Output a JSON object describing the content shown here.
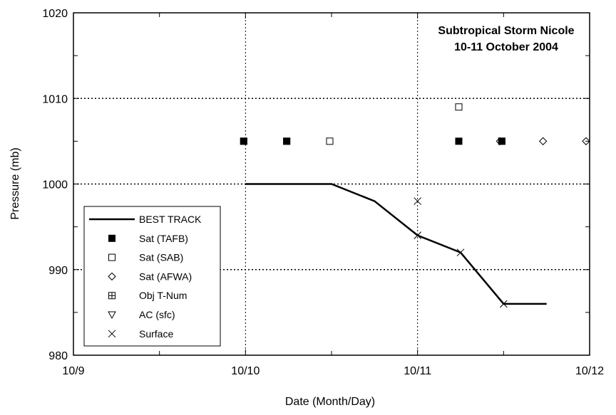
{
  "chart_data": {
    "type": "scatter",
    "title": "Subtropical Storm Nicole",
    "subtitle": "10-11 October 2004",
    "xlabel": "Date (Month/Day)",
    "ylabel": "Pressure (mb)",
    "x_ticks": [
      "10/9",
      "10/10",
      "10/11",
      "10/12"
    ],
    "x_range": [
      "10/9 00Z",
      "10/12 00Z"
    ],
    "y_ticks": [
      980,
      990,
      1000,
      1010,
      1020
    ],
    "ylim": [
      980,
      1020
    ],
    "grid": true,
    "legend_position": "bottom-left",
    "series": [
      {
        "name": "BEST TRACK",
        "style": "line",
        "points": [
          {
            "x": "10/10 00Z",
            "y": 1000
          },
          {
            "x": "10/10 06Z",
            "y": 1000
          },
          {
            "x": "10/10 12Z",
            "y": 1000
          },
          {
            "x": "10/10 18Z",
            "y": 998
          },
          {
            "x": "10/11 00Z",
            "y": 994
          },
          {
            "x": "10/11 06Z",
            "y": 992
          },
          {
            "x": "10/11 12Z",
            "y": 986
          },
          {
            "x": "10/11 18Z",
            "y": 986
          }
        ]
      },
      {
        "name": "Sat (TAFB)",
        "style": "filled-square",
        "points": [
          {
            "x": "10/09 23:45Z",
            "y": 1005
          },
          {
            "x": "10/10 05:45Z",
            "y": 1005
          },
          {
            "x": "10/11 05:45Z",
            "y": 1005
          },
          {
            "x": "10/11 11:45Z",
            "y": 1005
          }
        ]
      },
      {
        "name": "Sat (SAB)",
        "style": "open-square",
        "points": [
          {
            "x": "10/09 23:45Z",
            "y": 1005
          },
          {
            "x": "10/10 05:45Z",
            "y": 1005
          },
          {
            "x": "10/10 11:45Z",
            "y": 1005
          },
          {
            "x": "10/11 05:45Z",
            "y": 1009
          },
          {
            "x": "10/11 11:45Z",
            "y": 1005
          }
        ]
      },
      {
        "name": "Sat (AFWA)",
        "style": "diamond",
        "points": [
          {
            "x": "10/11 11:30Z",
            "y": 1005
          },
          {
            "x": "10/11 17:30Z",
            "y": 1005
          },
          {
            "x": "10/11 23:30Z",
            "y": 1005
          }
        ]
      },
      {
        "name": "Obj T-Num",
        "style": "boxed-plus",
        "points": []
      },
      {
        "name": "AC (sfc)",
        "style": "triangle-down",
        "points": []
      },
      {
        "name": "Surface",
        "style": "x",
        "points": [
          {
            "x": "10/11 00Z",
            "y": 998
          },
          {
            "x": "10/11 00Z",
            "y": 994
          },
          {
            "x": "10/11 06Z",
            "y": 992
          },
          {
            "x": "10/11 12Z",
            "y": 986
          }
        ]
      }
    ]
  }
}
